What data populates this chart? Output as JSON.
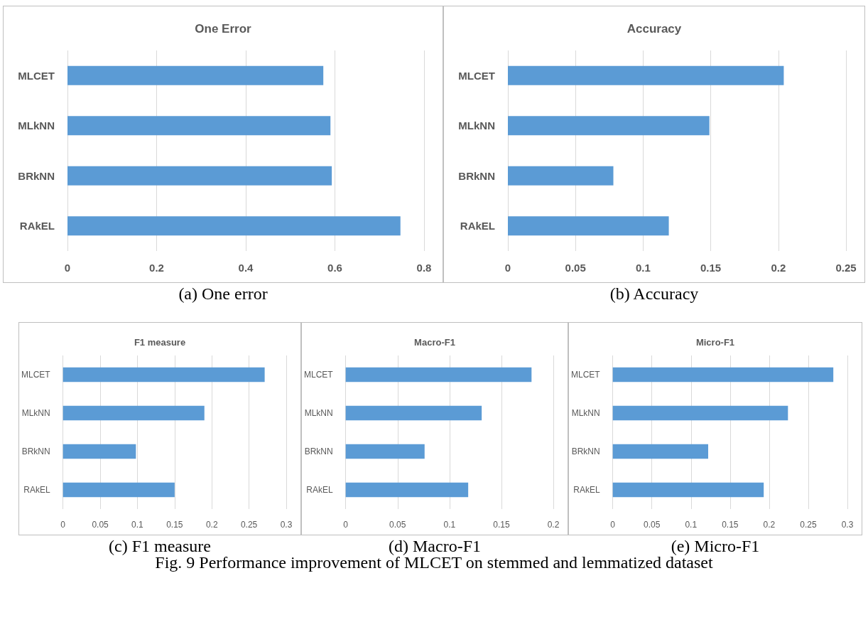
{
  "chart_data": [
    {
      "type": "bar",
      "orientation": "horizontal",
      "title": "One Error",
      "categories": [
        "MLCET",
        "MLkNN",
        "BRkNN",
        "RAkEL"
      ],
      "values": [
        0.574,
        0.59,
        0.593,
        0.747
      ],
      "color": "#5b9bd5",
      "xlim": [
        0,
        0.8
      ],
      "xticks": [
        0,
        0.2,
        0.4,
        0.6,
        0.8
      ],
      "grid": "x",
      "annotations": [
        "(a) One error"
      ]
    },
    {
      "type": "bar",
      "orientation": "horizontal",
      "title": "Accuracy",
      "categories": [
        "MLCET",
        "MLkNN",
        "BRkNN",
        "RAkEL"
      ],
      "values": [
        0.204,
        0.149,
        0.078,
        0.119
      ],
      "color": "#5b9bd5",
      "xlim": [
        0,
        0.25
      ],
      "xticks": [
        0,
        0.05,
        0.1,
        0.15,
        0.2,
        0.25
      ],
      "grid": "x",
      "annotations": [
        "(b) Accuracy"
      ]
    },
    {
      "type": "bar",
      "orientation": "horizontal",
      "title": "F1 measure",
      "categories": [
        "MLCET",
        "MLkNN",
        "BRkNN",
        "RAkEL"
      ],
      "values": [
        0.271,
        0.19,
        0.098,
        0.15
      ],
      "color": "#5b9bd5",
      "xlim": [
        0,
        0.3
      ],
      "xticks": [
        0,
        0.05,
        0.1,
        0.15,
        0.2,
        0.25,
        0.3
      ],
      "grid": "x",
      "annotations": [
        "(c) F1 measure"
      ]
    },
    {
      "type": "bar",
      "orientation": "horizontal",
      "title": "Macro-F1",
      "categories": [
        "MLCET",
        "MLkNN",
        "BRkNN",
        "RAkEL"
      ],
      "values": [
        0.179,
        0.131,
        0.076,
        0.118
      ],
      "color": "#5b9bd5",
      "xlim": [
        0,
        0.2
      ],
      "xticks": [
        0,
        0.05,
        0.1,
        0.15,
        0.2
      ],
      "grid": "x",
      "annotations": [
        "(d) Macro-F1"
      ]
    },
    {
      "type": "bar",
      "orientation": "horizontal",
      "title": "Micro-F1",
      "categories": [
        "MLCET",
        "MLkNN",
        "BRkNN",
        "RAkEL"
      ],
      "values": [
        0.282,
        0.224,
        0.122,
        0.193
      ],
      "color": "#5b9bd5",
      "xlim": [
        0,
        0.3
      ],
      "xticks": [
        0,
        0.05,
        0.1,
        0.15,
        0.2,
        0.25,
        0.3
      ],
      "grid": "x",
      "annotations": [
        "(e) Micro-F1",
        "Fig. 9 Performance improvement of MLCET on stemmed and lemmatized dataset"
      ]
    }
  ]
}
